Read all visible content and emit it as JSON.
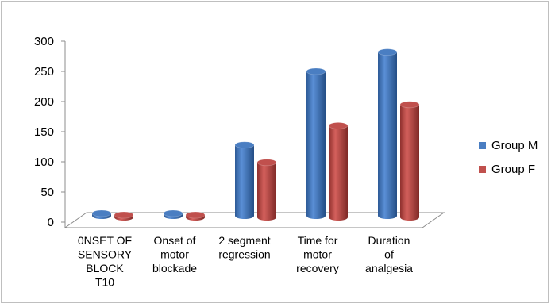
{
  "chart_data": {
    "type": "bar",
    "style": "3d-cylinder",
    "categories": [
      [
        "0NSET OF",
        "SENSORY",
        "BLOCK",
        "T10"
      ],
      [
        "Onset of",
        "motor",
        "blockade"
      ],
      [
        "2 segment",
        "regression"
      ],
      [
        "Time for",
        "motor",
        "recovery"
      ],
      [
        "Duration",
        "of",
        "analgesia"
      ]
    ],
    "series": [
      {
        "name": "Group M",
        "values": [
          2,
          2,
          128,
          250,
          282
        ],
        "color": "#4a7ec2"
      },
      {
        "name": "Group F",
        "values": [
          1,
          1,
          99,
          160,
          195
        ],
        "color": "#c0504d"
      }
    ],
    "yticks": [
      "0",
      "50",
      "100",
      "150",
      "200",
      "250",
      "300"
    ],
    "ylim": [
      0,
      300
    ],
    "grid": false,
    "legend_position": "right"
  }
}
